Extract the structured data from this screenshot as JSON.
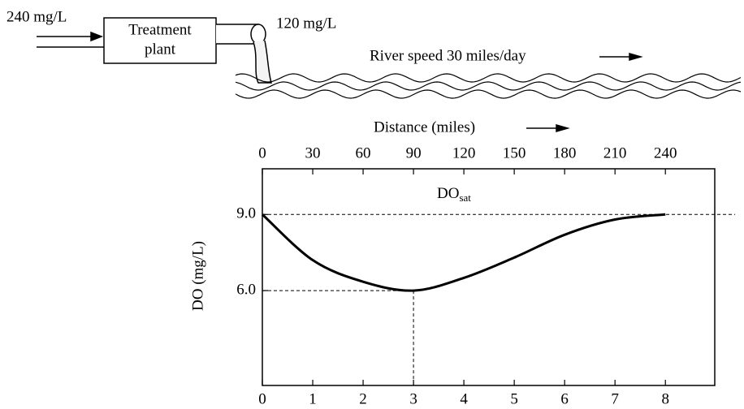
{
  "diagram": {
    "inflow": "240 mg/L",
    "plant": [
      "Treatment",
      "plant"
    ],
    "outflow": "120 mg/L",
    "river": "River speed 30 miles/day",
    "distance": "Distance (miles)"
  },
  "chart_data": {
    "type": "line",
    "ylabel": "DO (mg/L)",
    "annotation": {
      "text": "DO",
      "subscript": "sat"
    },
    "x": [
      0,
      1,
      2,
      3,
      4,
      5,
      6,
      7,
      8
    ],
    "values": [
      9.0,
      7.2,
      6.35,
      6.0,
      6.5,
      7.3,
      8.2,
      8.8,
      9.0
    ],
    "color": "#000000",
    "xlim": [
      0,
      8.98
    ],
    "xticks": [
      0,
      1,
      2,
      3,
      4,
      5,
      6,
      7,
      8
    ],
    "x2lim": [
      0,
      269.4
    ],
    "x2ticks": [
      0,
      30,
      60,
      90,
      120,
      150,
      180,
      210,
      240
    ],
    "ylim": [
      2.26,
      10.8
    ],
    "yticks": [
      {
        "value": 9,
        "label": "9.0"
      },
      {
        "value": 6,
        "label": "6.0"
      }
    ]
  }
}
